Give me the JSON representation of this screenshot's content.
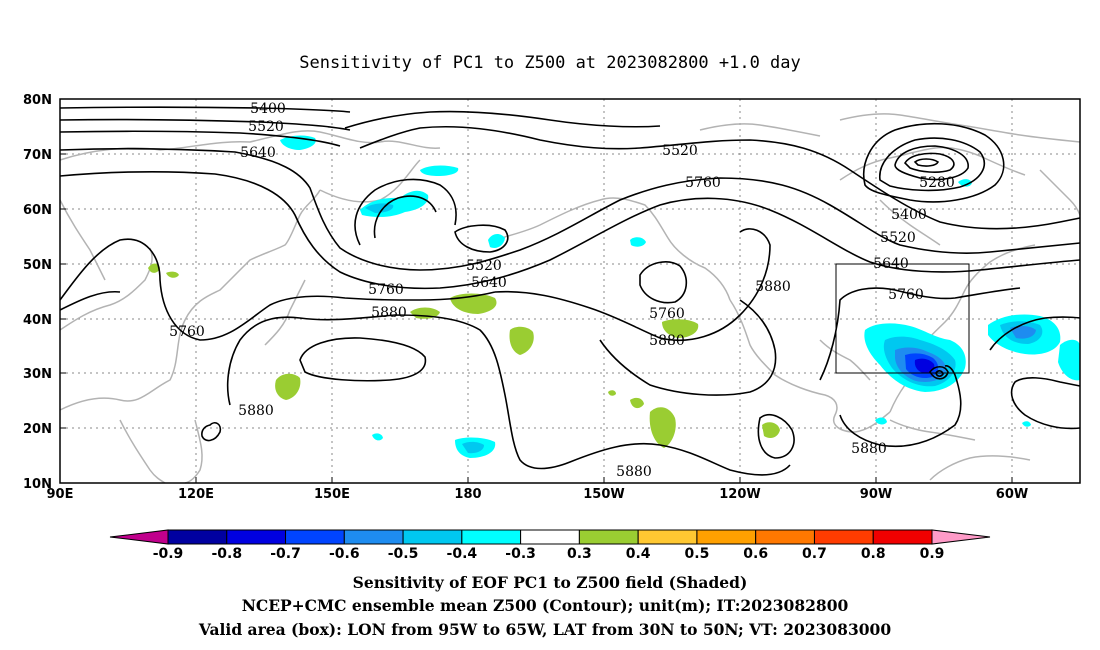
{
  "title": "Sensitivity of PC1 to Z500 at 2023082800 +1.0 day",
  "map": {
    "lat_labels": [
      "80N",
      "70N",
      "60N",
      "50N",
      "40N",
      "30N",
      "20N",
      "10N"
    ],
    "lon_labels": [
      "90E",
      "120E",
      "150E",
      "180",
      "150W",
      "120W",
      "90W",
      "60W"
    ],
    "contour_labels": [
      "5400",
      "5520",
      "5640",
      "5520",
      "5760",
      "5280",
      "5400",
      "5520",
      "5640",
      "5760",
      "5520",
      "5640",
      "5760",
      "5880",
      "5760",
      "5880",
      "5880",
      "5880",
      "5880",
      "5880",
      "5760"
    ],
    "valid_box": {
      "lon_w": -95,
      "lon_e": -65,
      "lat_s": 30,
      "lat_n": 50
    }
  },
  "colorbar": {
    "labels": [
      "-0.9",
      "-0.8",
      "-0.7",
      "-0.6",
      "-0.5",
      "-0.4",
      "-0.3",
      "0.3",
      "0.4",
      "0.5",
      "0.6",
      "0.7",
      "0.8",
      "0.9"
    ],
    "colors": [
      "#c0008c",
      "#0000a0",
      "#0000e0",
      "#0044ff",
      "#1e8cf0",
      "#00c8f0",
      "#00ffff",
      "#ffffff",
      "#9acd32",
      "#ffc832",
      "#ffa000",
      "#ff7800",
      "#ff3c00",
      "#f00000",
      "#ff9bc8"
    ]
  },
  "caption": {
    "line1": "Sensitivity of EOF PC1 to Z500 field (Shaded)",
    "line2": "NCEP+CMC ensemble mean Z500 (Contour); unit(m); IT:2023082800",
    "line3": "Valid area (box): LON from 95W to 65W, LAT from 30N to 50N; VT: 2023083000"
  }
}
